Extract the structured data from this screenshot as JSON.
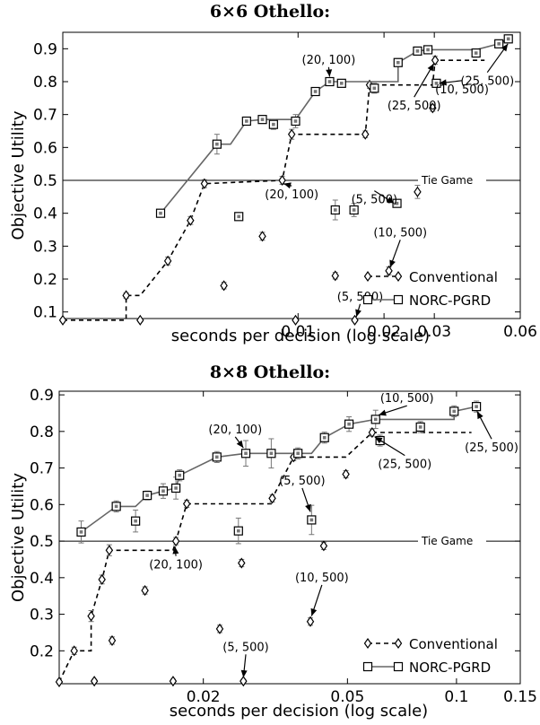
{
  "chart_data": [
    {
      "type": "scatter",
      "title": "6×6 Othello:",
      "xlabel": "seconds per decision (log scale)",
      "ylabel": "Objective Utility",
      "x_scale": "log",
      "xlim": [
        0.0015,
        0.06
      ],
      "ylim": [
        0.08,
        0.95
      ],
      "x_ticks": [
        {
          "value": 0.01,
          "label": "0.01"
        },
        {
          "value": 0.02,
          "label": "0.02"
        },
        {
          "value": 0.03,
          "label": "0.03"
        },
        {
          "value": 0.06,
          "label": "0.06"
        }
      ],
      "y_ticks": [
        {
          "value": 0.1,
          "label": "0.1"
        },
        {
          "value": 0.2,
          "label": "0.2"
        },
        {
          "value": 0.3,
          "label": "0.3"
        },
        {
          "value": 0.4,
          "label": "0.4"
        },
        {
          "value": 0.5,
          "label": "0.5"
        },
        {
          "value": 0.6,
          "label": "0.6"
        },
        {
          "value": 0.7,
          "label": "0.7"
        },
        {
          "value": 0.8,
          "label": "0.8"
        },
        {
          "value": 0.9,
          "label": "0.9"
        }
      ],
      "tie_line": {
        "y": 0.5,
        "label": "Tie Game"
      },
      "legend_position": "bottom-right",
      "series": [
        {
          "name": "Conventional",
          "marker": "diamond",
          "line": "dashed",
          "color": "#000000",
          "points": [
            {
              "x": 0.0015,
              "y": 0.075,
              "err": 0.005
            },
            {
              "x": 0.0025,
              "y": 0.15,
              "err": 0.008
            },
            {
              "x": 0.0028,
              "y": 0.075,
              "err": 0.005
            },
            {
              "x": 0.0035,
              "y": 0.255,
              "err": 0.012
            },
            {
              "x": 0.0042,
              "y": 0.378,
              "err": 0.012
            },
            {
              "x": 0.0047,
              "y": 0.49,
              "err": 0.012
            },
            {
              "x": 0.0055,
              "y": 0.18,
              "err": 0.01
            },
            {
              "x": 0.0075,
              "y": 0.33,
              "err": 0.012
            },
            {
              "x": 0.0088,
              "y": 0.5,
              "err": 0.012
            },
            {
              "x": 0.0095,
              "y": 0.64,
              "err": 0.015
            },
            {
              "x": 0.0098,
              "y": 0.075,
              "err": 0.005
            },
            {
              "x": 0.0135,
              "y": 0.21,
              "err": 0.01
            },
            {
              "x": 0.0158,
              "y": 0.075,
              "err": 0.005
            },
            {
              "x": 0.0172,
              "y": 0.64,
              "err": 0.01
            },
            {
              "x": 0.0178,
              "y": 0.79,
              "err": 0.01
            },
            {
              "x": 0.0208,
              "y": 0.225,
              "err": 0.012
            },
            {
              "x": 0.0262,
              "y": 0.465,
              "err": 0.02
            },
            {
              "x": 0.0296,
              "y": 0.72,
              "err": 0.01
            },
            {
              "x": 0.0302,
              "y": 0.865,
              "err": 0.012
            }
          ],
          "frontier": [
            {
              "x": 0.0015,
              "y": 0.075
            },
            {
              "x": 0.0025,
              "y": 0.075
            },
            {
              "x": 0.0025,
              "y": 0.15
            },
            {
              "x": 0.0028,
              "y": 0.15
            },
            {
              "x": 0.0035,
              "y": 0.255
            },
            {
              "x": 0.0042,
              "y": 0.378
            },
            {
              "x": 0.0047,
              "y": 0.49
            },
            {
              "x": 0.0088,
              "y": 0.5
            },
            {
              "x": 0.0095,
              "y": 0.64
            },
            {
              "x": 0.0172,
              "y": 0.64
            },
            {
              "x": 0.0178,
              "y": 0.79
            },
            {
              "x": 0.0296,
              "y": 0.79
            },
            {
              "x": 0.0302,
              "y": 0.865
            },
            {
              "x": 0.045,
              "y": 0.865
            }
          ]
        },
        {
          "name": "NORC-PGRD",
          "marker": "square",
          "line": "solid",
          "color": "#666666",
          "points": [
            {
              "x": 0.0033,
              "y": 0.4,
              "err": 0.01
            },
            {
              "x": 0.0052,
              "y": 0.61,
              "err": 0.03
            },
            {
              "x": 0.0062,
              "y": 0.39,
              "err": 0.01
            },
            {
              "x": 0.0066,
              "y": 0.68,
              "err": 0.012
            },
            {
              "x": 0.0075,
              "y": 0.685,
              "err": 0.012
            },
            {
              "x": 0.0082,
              "y": 0.67,
              "err": 0.015
            },
            {
              "x": 0.0098,
              "y": 0.68,
              "err": 0.02
            },
            {
              "x": 0.0115,
              "y": 0.77,
              "err": 0.01
            },
            {
              "x": 0.0129,
              "y": 0.8,
              "err": 0.012
            },
            {
              "x": 0.0135,
              "y": 0.41,
              "err": 0.03
            },
            {
              "x": 0.0142,
              "y": 0.795,
              "err": 0.01
            },
            {
              "x": 0.0157,
              "y": 0.41,
              "err": 0.02
            },
            {
              "x": 0.0185,
              "y": 0.78,
              "err": 0.015
            },
            {
              "x": 0.0222,
              "y": 0.43,
              "err": 0.01
            },
            {
              "x": 0.0224,
              "y": 0.858,
              "err": 0.012
            },
            {
              "x": 0.0262,
              "y": 0.893,
              "err": 0.01
            },
            {
              "x": 0.0285,
              "y": 0.897,
              "err": 0.01
            },
            {
              "x": 0.0305,
              "y": 0.795,
              "err": 0.01
            },
            {
              "x": 0.042,
              "y": 0.887,
              "err": 0.01
            },
            {
              "x": 0.0505,
              "y": 0.915,
              "err": 0.01
            },
            {
              "x": 0.0545,
              "y": 0.93,
              "err": 0.012
            }
          ],
          "frontier": [
            {
              "x": 0.0033,
              "y": 0.4
            },
            {
              "x": 0.0052,
              "y": 0.61
            },
            {
              "x": 0.0058,
              "y": 0.61
            },
            {
              "x": 0.0066,
              "y": 0.68
            },
            {
              "x": 0.0075,
              "y": 0.685
            },
            {
              "x": 0.0098,
              "y": 0.685
            },
            {
              "x": 0.0115,
              "y": 0.77
            },
            {
              "x": 0.0129,
              "y": 0.8
            },
            {
              "x": 0.0224,
              "y": 0.8
            },
            {
              "x": 0.0224,
              "y": 0.858
            },
            {
              "x": 0.0262,
              "y": 0.893
            },
            {
              "x": 0.0285,
              "y": 0.897
            },
            {
              "x": 0.042,
              "y": 0.897
            },
            {
              "x": 0.0505,
              "y": 0.915
            },
            {
              "x": 0.0545,
              "y": 0.93
            }
          ]
        }
      ],
      "annotations": [
        {
          "text": "(20, 100)",
          "x": 0.0128,
          "y": 0.855,
          "ax": 0.0129,
          "ay": 0.815
        },
        {
          "text": "(25, 500)",
          "x": 0.046,
          "y": 0.79,
          "ax": 0.0543,
          "ay": 0.915
        },
        {
          "text": "(25, 500)",
          "x": 0.0255,
          "y": 0.715,
          "ax": 0.0299,
          "ay": 0.855
        },
        {
          "text": "(10, 500)",
          "x": 0.0375,
          "y": 0.765,
          "ax": 0.0312,
          "ay": 0.795
        },
        {
          "text": "(20, 100)",
          "x": 0.0095,
          "y": 0.445,
          "ax": 0.0089,
          "ay": 0.49
        },
        {
          "text": "(5, 500)",
          "x": 0.0185,
          "y": 0.43,
          "ax": 0.0217,
          "ay": 0.43
        },
        {
          "text": "(10, 500)",
          "x": 0.0228,
          "y": 0.33,
          "ax": 0.021,
          "ay": 0.235
        },
        {
          "text": "(5, 500)",
          "x": 0.0165,
          "y": 0.135,
          "ax": 0.016,
          "ay": 0.085
        }
      ]
    },
    {
      "type": "scatter",
      "title": "8×8 Othello:",
      "xlabel": "seconds per decision (log scale)",
      "ylabel": "Objective Utility",
      "x_scale": "log",
      "xlim": [
        0.008,
        0.15
      ],
      "ylim": [
        0.11,
        0.91
      ],
      "x_ticks": [
        {
          "value": 0.02,
          "label": "0.02"
        },
        {
          "value": 0.05,
          "label": "0.05"
        },
        {
          "value": 0.1,
          "label": "0.1"
        },
        {
          "value": 0.15,
          "label": "0.15"
        }
      ],
      "y_ticks": [
        {
          "value": 0.2,
          "label": "0.2"
        },
        {
          "value": 0.3,
          "label": "0.3"
        },
        {
          "value": 0.4,
          "label": "0.4"
        },
        {
          "value": 0.5,
          "label": "0.5"
        },
        {
          "value": 0.6,
          "label": "0.6"
        },
        {
          "value": 0.7,
          "label": "0.7"
        },
        {
          "value": 0.8,
          "label": "0.8"
        },
        {
          "value": 0.9,
          "label": "0.9"
        }
      ],
      "tie_line": {
        "y": 0.5,
        "label": "Tie Game"
      },
      "legend_position": "bottom-right",
      "series": [
        {
          "name": "Conventional",
          "marker": "diamond",
          "line": "dashed",
          "color": "#000000",
          "points": [
            {
              "x": 0.008,
              "y": 0.115,
              "err": 0.005
            },
            {
              "x": 0.0088,
              "y": 0.2,
              "err": 0.01
            },
            {
              "x": 0.0098,
              "y": 0.295,
              "err": 0.015
            },
            {
              "x": 0.01,
              "y": 0.117,
              "err": 0.005
            },
            {
              "x": 0.0105,
              "y": 0.395,
              "err": 0.012
            },
            {
              "x": 0.011,
              "y": 0.475,
              "err": 0.015
            },
            {
              "x": 0.0112,
              "y": 0.228,
              "err": 0.01
            },
            {
              "x": 0.0138,
              "y": 0.365,
              "err": 0.01
            },
            {
              "x": 0.0165,
              "y": 0.117,
              "err": 0.005
            },
            {
              "x": 0.0168,
              "y": 0.5,
              "err": 0.01
            },
            {
              "x": 0.018,
              "y": 0.602,
              "err": 0.01
            },
            {
              "x": 0.0222,
              "y": 0.26,
              "err": 0.01
            },
            {
              "x": 0.0255,
              "y": 0.44,
              "err": 0.01
            },
            {
              "x": 0.0258,
              "y": 0.117,
              "err": 0.005
            },
            {
              "x": 0.031,
              "y": 0.617,
              "err": 0.01
            },
            {
              "x": 0.0355,
              "y": 0.73,
              "err": 0.01
            },
            {
              "x": 0.0395,
              "y": 0.28,
              "err": 0.01
            },
            {
              "x": 0.043,
              "y": 0.487,
              "err": 0.01
            },
            {
              "x": 0.0495,
              "y": 0.683,
              "err": 0.01
            },
            {
              "x": 0.0585,
              "y": 0.797,
              "err": 0.01
            }
          ],
          "frontier": [
            {
              "x": 0.008,
              "y": 0.115
            },
            {
              "x": 0.0088,
              "y": 0.2
            },
            {
              "x": 0.0098,
              "y": 0.2
            },
            {
              "x": 0.0098,
              "y": 0.295
            },
            {
              "x": 0.0105,
              "y": 0.395
            },
            {
              "x": 0.011,
              "y": 0.475
            },
            {
              "x": 0.0165,
              "y": 0.475
            },
            {
              "x": 0.0168,
              "y": 0.5
            },
            {
              "x": 0.018,
              "y": 0.602
            },
            {
              "x": 0.031,
              "y": 0.602
            },
            {
              "x": 0.031,
              "y": 0.617
            },
            {
              "x": 0.0355,
              "y": 0.73
            },
            {
              "x": 0.0495,
              "y": 0.73
            },
            {
              "x": 0.0585,
              "y": 0.797
            },
            {
              "x": 0.11,
              "y": 0.797
            }
          ]
        },
        {
          "name": "NORC-PGRD",
          "marker": "square",
          "line": "solid",
          "color": "#666666",
          "points": [
            {
              "x": 0.0092,
              "y": 0.525,
              "err": 0.03
            },
            {
              "x": 0.0115,
              "y": 0.595,
              "err": 0.015
            },
            {
              "x": 0.013,
              "y": 0.555,
              "err": 0.03
            },
            {
              "x": 0.014,
              "y": 0.625,
              "err": 0.012
            },
            {
              "x": 0.0155,
              "y": 0.637,
              "err": 0.02
            },
            {
              "x": 0.0168,
              "y": 0.645,
              "err": 0.03
            },
            {
              "x": 0.0172,
              "y": 0.68,
              "err": 0.015
            },
            {
              "x": 0.0218,
              "y": 0.73,
              "err": 0.015
            },
            {
              "x": 0.025,
              "y": 0.528,
              "err": 0.035
            },
            {
              "x": 0.0262,
              "y": 0.74,
              "err": 0.035
            },
            {
              "x": 0.0308,
              "y": 0.74,
              "err": 0.04
            },
            {
              "x": 0.0365,
              "y": 0.74,
              "err": 0.015
            },
            {
              "x": 0.0398,
              "y": 0.558,
              "err": 0.04
            },
            {
              "x": 0.0432,
              "y": 0.783,
              "err": 0.015
            },
            {
              "x": 0.0505,
              "y": 0.82,
              "err": 0.02
            },
            {
              "x": 0.0598,
              "y": 0.833,
              "err": 0.025
            },
            {
              "x": 0.0615,
              "y": 0.775,
              "err": 0.015
            },
            {
              "x": 0.0795,
              "y": 0.812,
              "err": 0.015
            },
            {
              "x": 0.0985,
              "y": 0.855,
              "err": 0.015
            },
            {
              "x": 0.1135,
              "y": 0.868,
              "err": 0.015
            }
          ],
          "frontier": [
            {
              "x": 0.0092,
              "y": 0.525
            },
            {
              "x": 0.0115,
              "y": 0.595
            },
            {
              "x": 0.013,
              "y": 0.595
            },
            {
              "x": 0.014,
              "y": 0.625
            },
            {
              "x": 0.0155,
              "y": 0.637
            },
            {
              "x": 0.0168,
              "y": 0.645
            },
            {
              "x": 0.0172,
              "y": 0.68
            },
            {
              "x": 0.0218,
              "y": 0.73
            },
            {
              "x": 0.0262,
              "y": 0.74
            },
            {
              "x": 0.0398,
              "y": 0.74
            },
            {
              "x": 0.0432,
              "y": 0.783
            },
            {
              "x": 0.0505,
              "y": 0.82
            },
            {
              "x": 0.0598,
              "y": 0.833
            },
            {
              "x": 0.0985,
              "y": 0.833
            },
            {
              "x": 0.0985,
              "y": 0.855
            },
            {
              "x": 0.1135,
              "y": 0.868
            }
          ]
        }
      ],
      "annotations": [
        {
          "text": "(20, 100)",
          "x": 0.0245,
          "y": 0.795,
          "ax": 0.0258,
          "ay": 0.755
        },
        {
          "text": "(10, 500)",
          "x": 0.073,
          "y": 0.88,
          "ax": 0.061,
          "ay": 0.845
        },
        {
          "text": "(25, 500)",
          "x": 0.072,
          "y": 0.7,
          "ax": 0.0595,
          "ay": 0.785
        },
        {
          "text": "(25, 500)",
          "x": 0.125,
          "y": 0.745,
          "ax": 0.114,
          "ay": 0.855
        },
        {
          "text": "(5, 500)",
          "x": 0.0375,
          "y": 0.655,
          "ax": 0.0395,
          "ay": 0.58
        },
        {
          "text": "(20, 100)",
          "x": 0.0168,
          "y": 0.425,
          "ax": 0.0167,
          "ay": 0.485
        },
        {
          "text": "(10, 500)",
          "x": 0.0425,
          "y": 0.39,
          "ax": 0.0398,
          "ay": 0.295
        },
        {
          "text": "(5, 500)",
          "x": 0.0262,
          "y": 0.2,
          "ax": 0.0258,
          "ay": 0.127
        }
      ]
    }
  ]
}
